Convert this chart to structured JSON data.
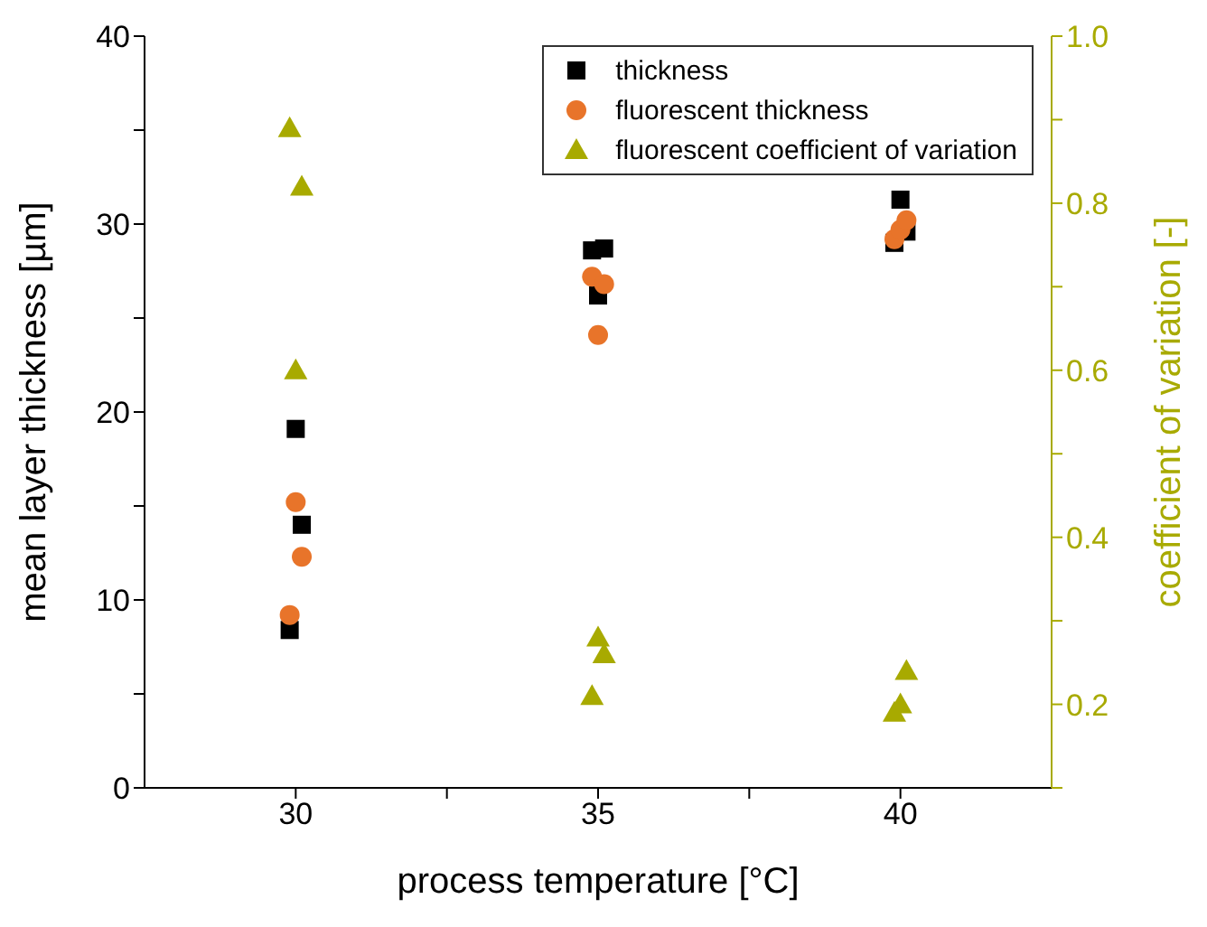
{
  "chart_data": {
    "type": "scatter",
    "xlabel": "process temperature [°C]",
    "ylabel": "mean layer thickness [µm]",
    "y2label": "coefficient of variation [-]",
    "xlim": [
      27.5,
      42.5
    ],
    "xticks": [
      30,
      {
        "value": 32.5,
        "label": null
      },
      35,
      {
        "value": 37.5,
        "label": null
      },
      40
    ],
    "ylim": [
      0,
      40
    ],
    "yticks": [
      0,
      {
        "value": 5,
        "label": null
      },
      10,
      {
        "value": 15,
        "label": null
      },
      20,
      {
        "value": 25,
        "label": null
      },
      30,
      {
        "value": 35,
        "label": null
      },
      40
    ],
    "y2lim": [
      0.1,
      1.0
    ],
    "y2ticks": [
      {
        "value": 0.1,
        "label": null
      },
      0.2,
      {
        "value": 0.3,
        "label": null
      },
      0.4,
      {
        "value": 0.5,
        "label": null
      },
      0.6,
      {
        "value": 0.7,
        "label": null
      },
      0.8,
      {
        "value": 0.9,
        "label": null
      },
      {
        "value": 1.0,
        "label": "1.0"
      }
    ],
    "legend": "top right",
    "grid": false,
    "series": [
      {
        "name": "thickness",
        "color": "#000000",
        "marker": "square",
        "x": [
          29.9,
          30.0,
          30.1,
          34.9,
          35.0,
          35.1,
          39.9,
          40.0,
          40.1
        ],
        "values": [
          8.4,
          19.1,
          14.0,
          28.6,
          26.2,
          28.7,
          29.0,
          31.3,
          29.6
        ]
      },
      {
        "name": "fluorescent thickness",
        "color": "#e8742a",
        "marker": "circle",
        "x": [
          29.9,
          30.0,
          30.1,
          34.9,
          35.0,
          35.1,
          39.9,
          40.0,
          40.1
        ],
        "values": [
          9.2,
          15.2,
          12.3,
          27.2,
          24.1,
          26.8,
          29.2,
          29.7,
          30.2
        ]
      },
      {
        "name": "fluorescent coefficient of variation",
        "color": "#a8aa00",
        "marker": "triangle",
        "axis": "y2",
        "x": [
          29.9,
          30.0,
          30.1,
          34.9,
          35.0,
          35.1,
          39.9,
          40.0,
          40.1
        ],
        "values": [
          0.89,
          0.6,
          0.82,
          0.21,
          0.28,
          0.26,
          0.19,
          0.2,
          0.24
        ]
      }
    ]
  }
}
